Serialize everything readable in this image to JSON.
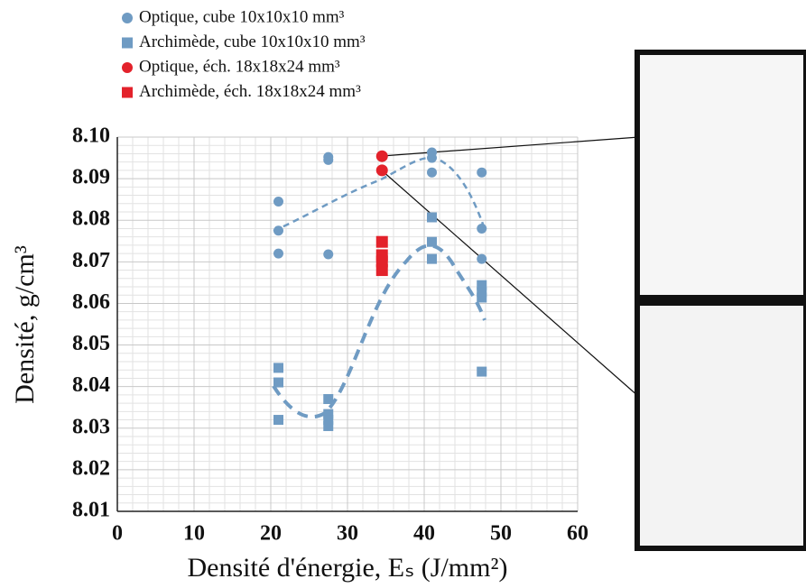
{
  "chart_data": {
    "type": "scatter",
    "x_label": "Densité d'énergie, Eₛ (J/mm²)",
    "y_label": "Densité, g/cm³",
    "xlim": [
      0,
      60
    ],
    "xticks": [
      0,
      10,
      20,
      30,
      40,
      50,
      60
    ],
    "ylim": [
      8.01,
      8.1
    ],
    "yticks": [
      8.01,
      8.02,
      8.03,
      8.04,
      8.05,
      8.06,
      8.07,
      8.08,
      8.09,
      {
        "value": 8.1,
        "label": "8.10"
      }
    ],
    "grid": true,
    "legend": "top-left",
    "series": [
      {
        "name": "Optique, cube 10x10x10 mm³",
        "color": "#6f9bc3",
        "marker": "circle",
        "x": [
          21,
          21,
          21,
          27.5,
          27.5,
          27.5,
          41,
          41,
          41,
          47.5,
          47.5,
          47.5
        ],
        "values": [
          8.0845,
          8.0775,
          8.072,
          8.0952,
          8.0945,
          8.0718,
          8.0963,
          8.095,
          8.0915,
          8.0915,
          8.078,
          8.0707
        ]
      },
      {
        "name": "Archimède, cube 10x10x10 mm³",
        "color": "#6f9bc3",
        "marker": "square",
        "x": [
          21,
          21,
          21,
          27.5,
          27.5,
          27.5,
          27.5,
          41,
          41,
          41,
          47.5,
          47.5,
          47.5,
          47.5
        ],
        "values": [
          8.0445,
          8.041,
          8.032,
          8.037,
          8.0334,
          8.032,
          8.0305,
          8.0807,
          8.0748,
          8.0707,
          8.0644,
          8.0627,
          8.0614,
          8.0436
        ]
      },
      {
        "name": "Optique, éch. 18x18x24 mm³",
        "color": "#e3222b",
        "marker": "circle",
        "x": [
          34.5,
          34.5
        ],
        "values": [
          8.0954,
          8.092
        ]
      },
      {
        "name": "Archimède, éch. 18x18x24 mm³",
        "color": "#e3222b",
        "marker": "square",
        "x": [
          34.5,
          34.5,
          34.5,
          34.5
        ],
        "values": [
          8.0748,
          8.0716,
          8.0701,
          8.068
        ]
      }
    ]
  }
}
